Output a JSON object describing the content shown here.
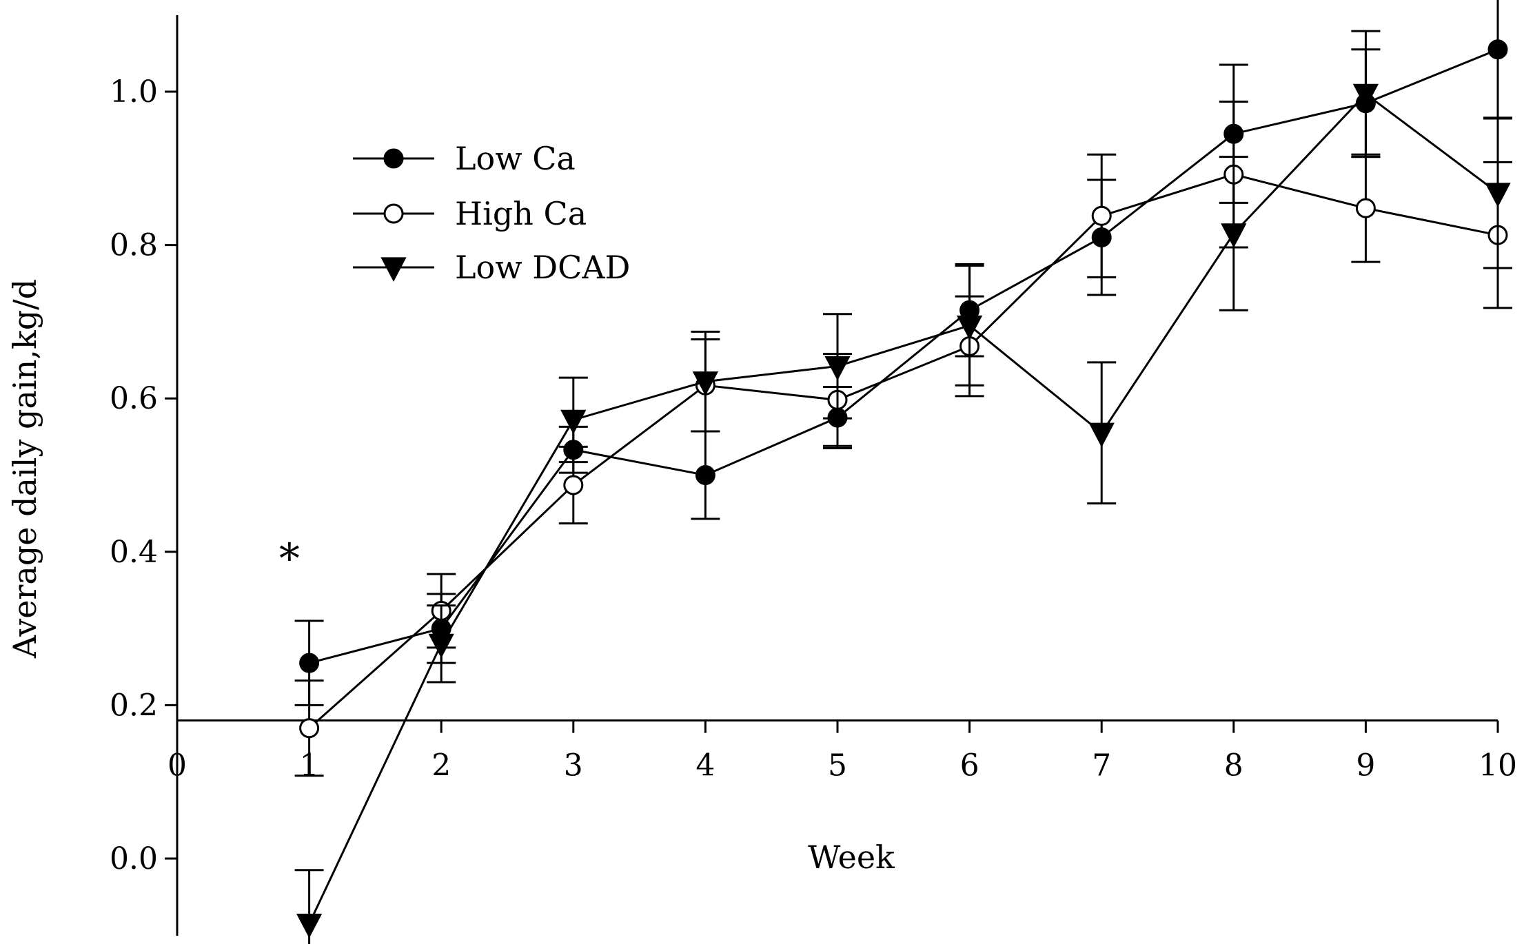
{
  "chart_data": {
    "type": "line",
    "title": "",
    "xlabel": "Week",
    "ylabel": "Average daily gain,kg/d",
    "x_ticks": [
      "0",
      "1",
      "2",
      "3",
      "4",
      "5",
      "6",
      "7",
      "8",
      "9",
      "10"
    ],
    "y_ticks": [
      "0.0",
      "0.2",
      "0.4",
      "0.6",
      "0.8",
      "1.0"
    ],
    "xlim": [
      0,
      10
    ],
    "ylim": [
      -0.1,
      1.1
    ],
    "x_axis_crosses_y_at": 0.18,
    "grid": false,
    "legend_position": "top-left",
    "annotations": [
      {
        "text": "*",
        "x": 0.85,
        "y": 0.4
      }
    ],
    "series": [
      {
        "name": "Low Ca",
        "marker": "filled-circle",
        "x": [
          1,
          2,
          3,
          4,
          5,
          6,
          7,
          8,
          9,
          10
        ],
        "values": [
          0.255,
          0.3,
          0.533,
          0.5,
          0.575,
          0.715,
          0.81,
          0.945,
          0.985,
          1.055
        ],
        "error": [
          0.055,
          0.045,
          0.03,
          0.057,
          0.04,
          0.06,
          0.075,
          0.09,
          0.07,
          0.09
        ]
      },
      {
        "name": "High Ca",
        "marker": "open-circle",
        "x": [
          1,
          2,
          3,
          4,
          5,
          6,
          7,
          8,
          9,
          10
        ],
        "values": [
          0.17,
          0.323,
          0.487,
          0.617,
          0.598,
          0.668,
          0.838,
          0.892,
          0.848,
          0.813
        ],
        "error": [
          0.062,
          0.048,
          0.05,
          0.06,
          0.06,
          0.065,
          0.08,
          0.095,
          0.07,
          0.095
        ]
      },
      {
        "name": "Low DCAD",
        "marker": "filled-triangle-down",
        "x": [
          1,
          2,
          3,
          4,
          5,
          6,
          7,
          8,
          9,
          10
        ],
        "values": [
          -0.085,
          0.28,
          0.572,
          0.622,
          0.642,
          0.695,
          0.555,
          0.815,
          0.997,
          0.868
        ],
        "error": [
          0.07,
          0.05,
          0.055,
          0.065,
          0.068,
          0.078,
          0.092,
          0.1,
          0.082,
          0.098
        ]
      }
    ]
  }
}
